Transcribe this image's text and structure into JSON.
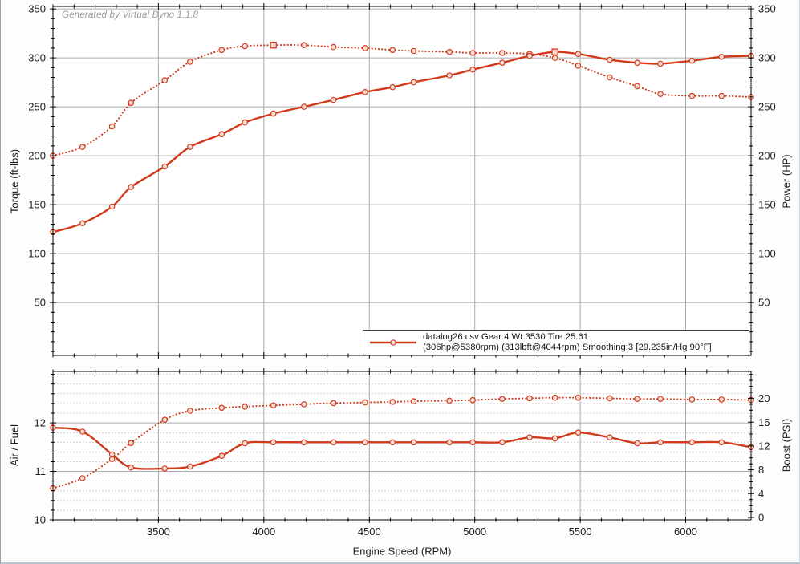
{
  "watermark": "Generated by Virtual Dyno 1.1.8",
  "colors": {
    "curve": "#d23a1c",
    "marker_fill": "#f9ded6",
    "grid_major": "#ababab",
    "grid_minor": "#d3d3d3",
    "axis": "#000000",
    "tick_text": "#1d1d1d",
    "watermark_text": "#9c9c9c",
    "legend_border": "#3a3a3a"
  },
  "legend": {
    "line1": "datalog26.csv Gear:4 Wt:3530 Tire:25.61",
    "line2": "(306hp@5380rpm) (313lbft@4044rpm) Smoothing:3 [29.235in/Hg 90°F]"
  },
  "xlabel": "Engine Speed (RPM)",
  "chart_data": [
    {
      "type": "line",
      "position": "top",
      "ylabel_left": "Torque (ft-lbs)",
      "ylabel_right": "Power (HP)",
      "xlim": [
        3000,
        6310
      ],
      "ylim_left": [
        -4,
        352.5
      ],
      "ylim_right": [
        -4,
        352.5
      ],
      "yticks_left": [
        50,
        100,
        150,
        200,
        250,
        300,
        350
      ],
      "yticks_right": [
        50,
        100,
        150,
        200,
        250,
        300,
        350
      ],
      "ytick_minor_step_left": 10,
      "ytick_minor_step_right": 10,
      "xticks": [
        3500,
        4000,
        4500,
        5000,
        5500,
        6000
      ],
      "xtick_minor_step": 100,
      "grid": "major-only",
      "legend_position": "bottom-right-inside",
      "x": [
        3000,
        3140,
        3280,
        3370,
        3530,
        3650,
        3800,
        3910,
        4045,
        4190,
        4330,
        4480,
        4610,
        4710,
        4880,
        4990,
        5130,
        5260,
        5380,
        5490,
        5640,
        5770,
        5880,
        6030,
        6170,
        6310
      ],
      "series": [
        {
          "name": "Torque (ft-lbs)",
          "style": "dotted",
          "axis": "left",
          "peak_label": "313lbft@4044rpm",
          "peak_marker_rpm": 4045,
          "values": [
            200,
            209,
            230,
            254,
            277,
            296,
            308,
            312,
            313,
            313,
            311,
            310,
            308,
            307,
            306,
            305,
            305,
            304,
            300,
            292,
            280,
            271,
            263,
            261,
            261,
            260
          ]
        },
        {
          "name": "Power (HP)",
          "style": "solid",
          "axis": "left",
          "peak_label": "306hp@5380rpm",
          "peak_marker_rpm": 5380,
          "values": [
            122,
            131,
            148,
            168,
            189,
            209,
            222,
            234,
            243,
            250,
            257,
            265,
            270,
            275,
            282,
            288,
            295,
            302,
            306,
            304,
            298,
            295,
            294,
            297,
            301,
            302
          ]
        }
      ]
    },
    {
      "type": "line",
      "position": "bottom",
      "ylabel_left": "Air / Fuel",
      "ylabel_right": "Boost (PSI)",
      "xlim": [
        3000,
        6310
      ],
      "ylim_left": [
        10,
        13.06
      ],
      "ylim_right": [
        -0.4,
        24.5
      ],
      "yticks_left": [
        10,
        11,
        12
      ],
      "yticks_right": [
        0,
        4,
        8,
        12,
        16,
        20
      ],
      "ytick_minor_step_left": 0.2,
      "ytick_minor_step_right": 1,
      "xticks": [
        3500,
        4000,
        4500,
        5000,
        5500,
        6000
      ],
      "xtick_minor_step": 100,
      "grid": "major-plus-dashed-minor-horizontal",
      "x": [
        3000,
        3140,
        3280,
        3370,
        3530,
        3650,
        3800,
        3910,
        4045,
        4190,
        4330,
        4480,
        4610,
        4710,
        4880,
        4990,
        5130,
        5260,
        5380,
        5490,
        5640,
        5770,
        5880,
        6030,
        6170,
        6310
      ],
      "series": [
        {
          "name": "Boost (PSI)",
          "style": "dotted",
          "axis": "right",
          "values": [
            4.9,
            6.6,
            9.8,
            12.5,
            16.4,
            17.9,
            18.4,
            18.6,
            18.8,
            19.0,
            19.2,
            19.3,
            19.4,
            19.5,
            19.6,
            19.7,
            19.9,
            20.0,
            20.1,
            20.1,
            20.0,
            19.9,
            19.9,
            19.8,
            19.8,
            19.7
          ]
        },
        {
          "name": "Air / Fuel",
          "style": "solid",
          "axis": "left",
          "values": [
            11.9,
            11.82,
            11.35,
            11.08,
            11.06,
            11.1,
            11.32,
            11.58,
            11.6,
            11.6,
            11.6,
            11.6,
            11.6,
            11.6,
            11.6,
            11.6,
            11.6,
            11.7,
            11.68,
            11.8,
            11.7,
            11.58,
            11.6,
            11.6,
            11.6,
            11.5
          ]
        }
      ]
    }
  ]
}
